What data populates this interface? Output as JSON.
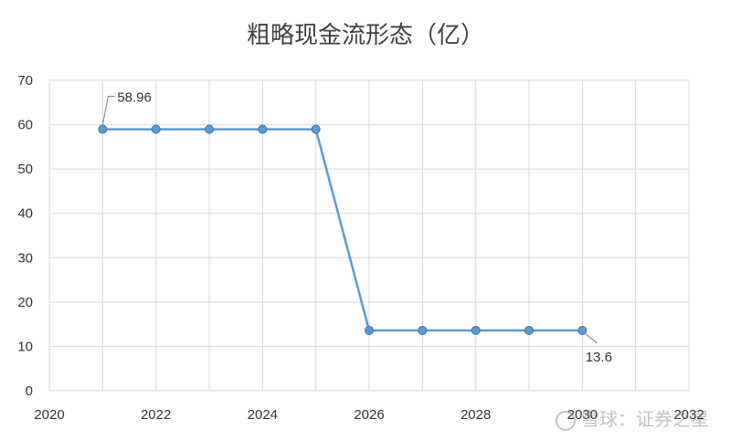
{
  "chart_data": {
    "type": "line",
    "title": "粗略现金流形态（亿）",
    "xlabel": "",
    "ylabel": "",
    "xlim": [
      2020,
      2032
    ],
    "ylim": [
      0,
      70
    ],
    "x_ticks": [
      "2020",
      "2022",
      "2024",
      "2026",
      "2028",
      "2030",
      "2032"
    ],
    "y_ticks": [
      "0",
      "10",
      "20",
      "30",
      "40",
      "50",
      "60",
      "70"
    ],
    "grid": true,
    "legend": "none",
    "series": [
      {
        "color": "#5b9bd5",
        "x": [
          2021,
          2022,
          2023,
          2024,
          2025,
          2026,
          2027,
          2028,
          2029,
          2030
        ],
        "y": [
          58.96,
          58.96,
          58.96,
          58.96,
          58.96,
          13.6,
          13.6,
          13.6,
          13.6,
          13.6
        ]
      }
    ],
    "annotations": [
      {
        "x": 2021,
        "y": 58.96,
        "text": "58.96"
      },
      {
        "x": 2030,
        "y": 13.6,
        "text": "13.6"
      }
    ]
  },
  "watermark": {
    "text": "雪球：证券之星"
  }
}
